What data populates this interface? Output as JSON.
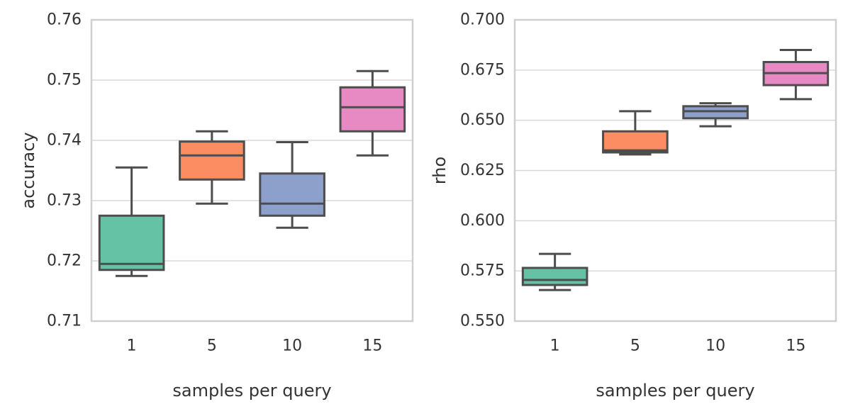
{
  "chart_data": [
    {
      "type": "box",
      "title": "",
      "xlabel": "samples per query",
      "ylabel": "accuracy",
      "categories": [
        "1",
        "5",
        "10",
        "15"
      ],
      "ylim": [
        0.71,
        0.76
      ],
      "yticks": [
        0.71,
        0.72,
        0.73,
        0.74,
        0.75,
        0.76
      ],
      "ytick_labels": [
        "0.71",
        "0.72",
        "0.73",
        "0.74",
        "0.75",
        "0.76"
      ],
      "grid": true,
      "boxes": [
        {
          "category": "1",
          "whisker_low": 0.7175,
          "q1": 0.7185,
          "median": 0.7195,
          "q3": 0.7275,
          "whisker_high": 0.7355,
          "color": "#66c2a5"
        },
        {
          "category": "5",
          "whisker_low": 0.7295,
          "q1": 0.7335,
          "median": 0.7375,
          "q3": 0.7398,
          "whisker_high": 0.7415,
          "color": "#fc8d62"
        },
        {
          "category": "10",
          "whisker_low": 0.7255,
          "q1": 0.7275,
          "median": 0.7295,
          "q3": 0.7345,
          "whisker_high": 0.7397,
          "color": "#8da0cb"
        },
        {
          "category": "15",
          "whisker_low": 0.7375,
          "q1": 0.7415,
          "median": 0.7455,
          "q3": 0.7488,
          "whisker_high": 0.7515,
          "color": "#e78ac3"
        }
      ]
    },
    {
      "type": "box",
      "title": "",
      "xlabel": "samples per query",
      "ylabel": "rho",
      "categories": [
        "1",
        "5",
        "10",
        "15"
      ],
      "ylim": [
        0.55,
        0.7
      ],
      "yticks": [
        0.55,
        0.575,
        0.6,
        0.625,
        0.65,
        0.675,
        0.7
      ],
      "ytick_labels": [
        "0.550",
        "0.575",
        "0.600",
        "0.625",
        "0.650",
        "0.675",
        "0.700"
      ],
      "grid": true,
      "boxes": [
        {
          "category": "1",
          "whisker_low": 0.5655,
          "q1": 0.568,
          "median": 0.5705,
          "q3": 0.5765,
          "whisker_high": 0.5835,
          "color": "#66c2a5"
        },
        {
          "category": "5",
          "whisker_low": 0.633,
          "q1": 0.634,
          "median": 0.635,
          "q3": 0.6445,
          "whisker_high": 0.6545,
          "color": "#fc8d62"
        },
        {
          "category": "10",
          "whisker_low": 0.647,
          "q1": 0.651,
          "median": 0.6545,
          "q3": 0.657,
          "whisker_high": 0.6585,
          "color": "#8da0cb"
        },
        {
          "category": "15",
          "whisker_low": 0.6605,
          "q1": 0.6675,
          "median": 0.6735,
          "q3": 0.679,
          "whisker_high": 0.685,
          "color": "#e78ac3"
        }
      ]
    }
  ]
}
